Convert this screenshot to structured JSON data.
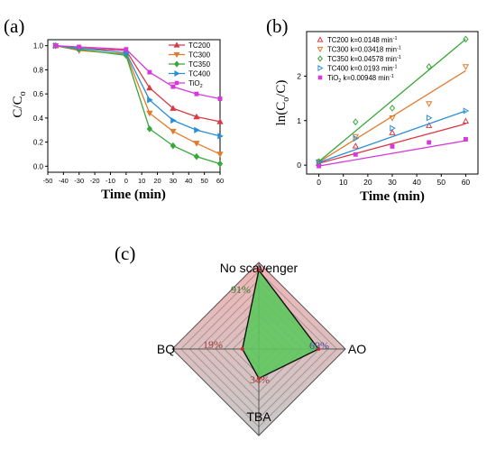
{
  "panel_a": {
    "label": "(a)",
    "chart_data": {
      "type": "line",
      "xlabel": "Time (min)",
      "ylabel": "C/C",
      "ylabel_sub": "o",
      "xlim": [
        -50,
        60
      ],
      "ylim": [
        -0.05,
        1.05
      ],
      "xticks": [
        -50,
        -40,
        -30,
        -20,
        -10,
        0,
        10,
        20,
        30,
        40,
        50,
        60
      ],
      "yticks": [
        0.0,
        0.2,
        0.4,
        0.6,
        0.8,
        1.0
      ],
      "ytick_labels": [
        "0.0",
        "0.2",
        "0.4",
        "0.6",
        "0.8",
        "1.0"
      ],
      "legend_position": "top-right",
      "x": [
        -45,
        -30,
        0,
        15,
        30,
        45,
        60
      ],
      "series": [
        {
          "name": "TC200",
          "color": "#d93a45",
          "marker": "triangle-up",
          "values": [
            1.0,
            0.98,
            0.96,
            0.65,
            0.48,
            0.41,
            0.37
          ]
        },
        {
          "name": "TC300",
          "color": "#e07b2e",
          "marker": "triangle-down",
          "values": [
            1.0,
            0.96,
            0.93,
            0.44,
            0.29,
            0.19,
            0.1
          ]
        },
        {
          "name": "TC350",
          "color": "#38a838",
          "marker": "diamond",
          "values": [
            1.0,
            0.97,
            0.92,
            0.31,
            0.17,
            0.08,
            0.02
          ]
        },
        {
          "name": "TC400",
          "color": "#2a8fd6",
          "marker": "triangle-right",
          "values": [
            1.0,
            0.98,
            0.94,
            0.55,
            0.38,
            0.3,
            0.25
          ]
        },
        {
          "name": "TiO2",
          "name_main": "TiO",
          "name_sub": "2",
          "color": "#d63ad6",
          "marker": "square",
          "values": [
            1.0,
            0.99,
            0.97,
            0.78,
            0.66,
            0.6,
            0.56
          ]
        }
      ]
    }
  },
  "panel_b": {
    "label": "(b)",
    "chart_data": {
      "type": "scatter",
      "xlabel": "Time (min)",
      "ylabel_prefix": "ln(C",
      "ylabel_sub": "o",
      "ylabel_suffix": "/C)",
      "xlim": [
        -5,
        65
      ],
      "ylim": [
        -0.2,
        3.0
      ],
      "xticks": [
        0,
        10,
        20,
        30,
        40,
        50,
        60
      ],
      "yticks": [
        0,
        1,
        2
      ],
      "legend_position": "top-left",
      "x": [
        0,
        15,
        30,
        45,
        60
      ],
      "series": [
        {
          "name": "TC200",
          "legend_text": "TC200 k=0.0148 min",
          "unit_exp": "-1",
          "k": 0.0148,
          "color": "#d93a45",
          "marker": "triangle-up",
          "values": [
            0.04,
            0.43,
            0.73,
            0.89,
            0.99
          ]
        },
        {
          "name": "TC300",
          "legend_text": "TC300 k=0.03418 min",
          "unit_exp": "-1",
          "k": 0.03418,
          "color": "#e07b2e",
          "marker": "triangle-down",
          "values": [
            0.07,
            0.64,
            1.06,
            1.38,
            2.21
          ]
        },
        {
          "name": "TC350",
          "legend_text": "TC350 k=0.04578 min",
          "unit_exp": "-1",
          "k": 0.04578,
          "color": "#38a838",
          "marker": "diamond",
          "values": [
            0.08,
            0.97,
            1.28,
            2.21,
            2.83
          ]
        },
        {
          "name": "TC400",
          "legend_text": "TC400 k=0.0193 min",
          "unit_exp": "-1",
          "k": 0.0193,
          "color": "#2a8fd6",
          "marker": "triangle-right",
          "values": [
            0.06,
            0.6,
            0.83,
            1.06,
            1.22
          ]
        },
        {
          "name": "TiO2",
          "legend_pre": "TiO",
          "legend_sub": "2",
          "legend_text": " k=0.00948 min",
          "unit_exp": "-1",
          "k": 0.00948,
          "color": "#d63ad6",
          "marker": "square",
          "values": [
            -0.02,
            0.24,
            0.42,
            0.51,
            0.58
          ]
        }
      ]
    }
  },
  "panel_c": {
    "label": "(c)",
    "chart_data": {
      "type": "radar",
      "axes": [
        "No scavenger",
        "AO",
        "TBA",
        "BQ"
      ],
      "max": 100,
      "values": [
        91,
        69,
        34,
        19
      ],
      "value_labels": [
        "91%",
        "69%",
        "34%",
        "19%"
      ],
      "label_colors": [
        "#2e7a2e",
        "#4a4a9a",
        "#a03a3a",
        "#a03a3a"
      ],
      "fill_color": "#5ec85e",
      "background_top": "#f2b5b5",
      "background_bottom": "#c8c8c8"
    }
  }
}
